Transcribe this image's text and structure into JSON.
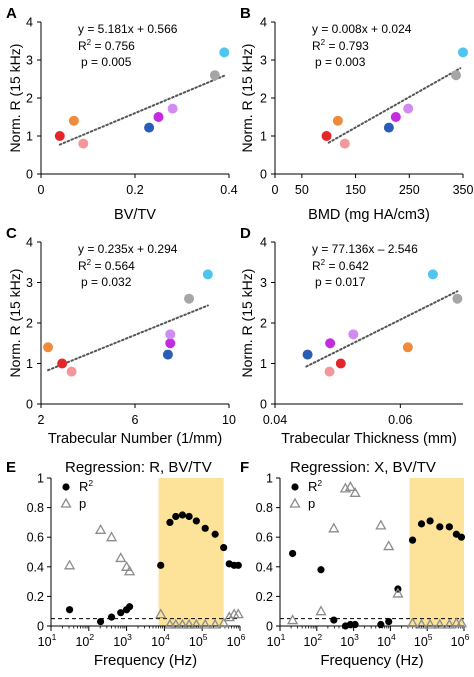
{
  "chart_data": [
    {
      "panel": "A",
      "type": "scatter",
      "title": "",
      "xlabel": "BV/TV",
      "ylabel": "Norm. R (15 kHz)",
      "xlim": [
        0,
        0.4
      ],
      "ylim": [
        0,
        4
      ],
      "xticks": [
        "0",
        "0.2",
        "0.4"
      ],
      "yticks": [
        "0",
        "1",
        "2",
        "3",
        "4"
      ],
      "fit": {
        "slope": 5.181,
        "intercept": 0.566,
        "x_range": [
          0.04,
          0.39
        ]
      },
      "stats": {
        "eq": "y = 5.181x + 0.566",
        "r2_label": "R",
        "r2_exp": "2",
        "r2_value": " = 0.756",
        "p": "p = 0.005"
      },
      "points": [
        {
          "x": 0.04,
          "y": 1.0,
          "color": "#e3262a"
        },
        {
          "x": 0.07,
          "y": 1.4,
          "color": "#ef8b3a"
        },
        {
          "x": 0.09,
          "y": 0.8,
          "color": "#f4979a"
        },
        {
          "x": 0.23,
          "y": 1.22,
          "color": "#2a5db5"
        },
        {
          "x": 0.25,
          "y": 1.5,
          "color": "#c42ae0"
        },
        {
          "x": 0.28,
          "y": 1.72,
          "color": "#d28cf0"
        },
        {
          "x": 0.37,
          "y": 2.6,
          "color": "#a6a6a6"
        },
        {
          "x": 0.39,
          "y": 3.2,
          "color": "#4fc4ec"
        }
      ]
    },
    {
      "panel": "B",
      "type": "scatter",
      "title": "",
      "xlabel": "BMD (mg HA/cm3)",
      "ylabel": "Norm. R (15 kHz)",
      "xlim": [
        0,
        350
      ],
      "ylim": [
        0,
        4
      ],
      "xticks": [
        "0",
        "50",
        "150",
        "250",
        "350"
      ],
      "fit": {
        "slope": 0.008,
        "intercept": 0.024,
        "x_range": [
          100,
          345
        ]
      },
      "stats": {
        "eq": "y = 0.008x + 0.024",
        "r2_label": "R",
        "r2_exp": "2",
        "r2_value": " = 0.793",
        "p": "p = 0.003"
      },
      "points": [
        {
          "x": 96,
          "y": 1.0,
          "color": "#e3262a"
        },
        {
          "x": 117,
          "y": 1.4,
          "color": "#ef8b3a"
        },
        {
          "x": 130,
          "y": 0.8,
          "color": "#f4979a"
        },
        {
          "x": 212,
          "y": 1.22,
          "color": "#2a5db5"
        },
        {
          "x": 225,
          "y": 1.5,
          "color": "#c42ae0"
        },
        {
          "x": 248,
          "y": 1.72,
          "color": "#d28cf0"
        },
        {
          "x": 337,
          "y": 2.6,
          "color": "#a6a6a6"
        },
        {
          "x": 350,
          "y": 3.2,
          "color": "#4fc4ec"
        }
      ]
    },
    {
      "panel": "C",
      "type": "scatter",
      "title": "",
      "xlabel": "Trabecular Number (1/mm)",
      "ylabel": "Norm. R (15 kHz)",
      "xlim": [
        2,
        10
      ],
      "ylim": [
        0,
        4
      ],
      "xticks": [
        "2",
        "6",
        "10"
      ],
      "fit": {
        "slope": 0.235,
        "intercept": 0.294,
        "x_range": [
          2.3,
          9.1
        ]
      },
      "stats": {
        "eq": "y = 0.235x + 0.294",
        "r2_label": "R",
        "r2_exp": "2",
        "r2_value": " = 0.564",
        "p": "p = 0.032"
      },
      "points": [
        {
          "x": 2.3,
          "y": 1.4,
          "color": "#ef8b3a"
        },
        {
          "x": 2.9,
          "y": 1.0,
          "color": "#e3262a"
        },
        {
          "x": 3.3,
          "y": 0.8,
          "color": "#f4979a"
        },
        {
          "x": 7.4,
          "y": 1.22,
          "color": "#2a5db5"
        },
        {
          "x": 7.5,
          "y": 1.5,
          "color": "#c42ae0"
        },
        {
          "x": 7.5,
          "y": 1.72,
          "color": "#d28cf0"
        },
        {
          "x": 8.3,
          "y": 2.6,
          "color": "#a6a6a6"
        },
        {
          "x": 9.1,
          "y": 3.2,
          "color": "#4fc4ec"
        }
      ]
    },
    {
      "panel": "D",
      "type": "scatter",
      "title": "",
      "xlabel": "Trabecular Thickness (mm)",
      "ylabel": "Norm. R (15 kHz)",
      "xlim": [
        0.04,
        0.07
      ],
      "ylim": [
        0,
        4
      ],
      "xticks": [
        "0.04",
        "0.06"
      ],
      "fit": {
        "slope": 77.136,
        "intercept": -2.546,
        "x_range": [
          0.045,
          0.0691
        ]
      },
      "stats": {
        "eq": "y = 77.136x – 2.546",
        "r2_label": "R",
        "r2_exp": "2",
        "r2_value": " = 0.642",
        "p": "p = 0.017"
      },
      "points": [
        {
          "x": 0.0452,
          "y": 1.22,
          "color": "#2a5db5"
        },
        {
          "x": 0.0487,
          "y": 0.8,
          "color": "#f4979a"
        },
        {
          "x": 0.0488,
          "y": 1.5,
          "color": "#c42ae0"
        },
        {
          "x": 0.0505,
          "y": 1.0,
          "color": "#e3262a"
        },
        {
          "x": 0.0525,
          "y": 1.72,
          "color": "#d28cf0"
        },
        {
          "x": 0.0612,
          "y": 1.4,
          "color": "#ef8b3a"
        },
        {
          "x": 0.0652,
          "y": 3.2,
          "color": "#4fc4ec"
        },
        {
          "x": 0.0691,
          "y": 2.6,
          "color": "#a6a6a6"
        }
      ]
    },
    {
      "panel": "E",
      "type": "scatter",
      "title": "Regression: R, BV/TV",
      "xlabel": "Frequency (Hz)",
      "ylabel": "",
      "xscale": "log",
      "xlim": [
        10,
        1000000
      ],
      "ylim": [
        0,
        1
      ],
      "yticks": [
        "0",
        "0.2",
        "0.4",
        "0.6",
        "0.8",
        "1"
      ],
      "xtick_exps": [
        "1",
        "2",
        "3",
        "4",
        "5",
        "6"
      ],
      "highlight": [
        7000,
        370000
      ],
      "threshold": 0.05,
      "legend": [
        "R",
        "p"
      ],
      "series": [
        {
          "name": "R2",
          "x": [
            31,
            205,
            400,
            700,
            1000,
            1200,
            8000,
            14000,
            20000,
            30000,
            45000,
            70000,
            120000,
            220000,
            370000,
            520000,
            700000,
            900000
          ],
          "y": [
            0.11,
            0.03,
            0.06,
            0.09,
            0.11,
            0.13,
            0.41,
            0.7,
            0.74,
            0.75,
            0.74,
            0.71,
            0.66,
            0.62,
            0.53,
            0.42,
            0.41,
            0.41
          ]
        },
        {
          "name": "p",
          "x": [
            31,
            205,
            400,
            700,
            1000,
            1200,
            8000,
            14000,
            20000,
            30000,
            45000,
            70000,
            120000,
            220000,
            370000,
            520000,
            700000,
            900000
          ],
          "y": [
            0.41,
            0.65,
            0.6,
            0.46,
            0.4,
            0.37,
            0.08,
            0.01,
            0.01,
            0.01,
            0.01,
            0.01,
            0.01,
            0.01,
            0.02,
            0.06,
            0.08,
            0.08
          ]
        }
      ]
    },
    {
      "panel": "F",
      "type": "scatter",
      "title": "Regression: X, BV/TV",
      "xlabel": "Frequency (Hz)",
      "ylabel": "",
      "xscale": "log",
      "xlim": [
        10,
        1000000
      ],
      "ylim": [
        0,
        1
      ],
      "yticks": [
        "0",
        "0.2",
        "0.4",
        "0.6",
        "0.8",
        "1"
      ],
      "xtick_exps": [
        "1",
        "2",
        "3",
        "4",
        "5",
        "6"
      ],
      "highlight": [
        33000,
        1000000
      ],
      "threshold": 0.05,
      "legend": [
        "R",
        "p"
      ],
      "series": [
        {
          "name": "R2",
          "x": [
            22,
            130,
            290,
            600,
            820,
            1100,
            5500,
            9000,
            16000,
            40000,
            70000,
            120000,
            220000,
            400000,
            620000,
            850000
          ],
          "y": [
            0.49,
            0.38,
            0.04,
            0.0,
            0.01,
            0.01,
            0.01,
            0.03,
            0.25,
            0.58,
            0.69,
            0.71,
            0.67,
            0.67,
            0.62,
            0.6
          ]
        },
        {
          "name": "p",
          "x": [
            22,
            130,
            290,
            600,
            820,
            1100,
            5500,
            9000,
            16000,
            40000,
            70000,
            120000,
            220000,
            400000,
            620000,
            850000
          ],
          "y": [
            0.04,
            0.1,
            0.66,
            0.93,
            0.94,
            0.9,
            0.68,
            0.54,
            0.22,
            0.02,
            0.01,
            0.01,
            0.01,
            0.01,
            0.02,
            0.02
          ]
        }
      ]
    }
  ]
}
